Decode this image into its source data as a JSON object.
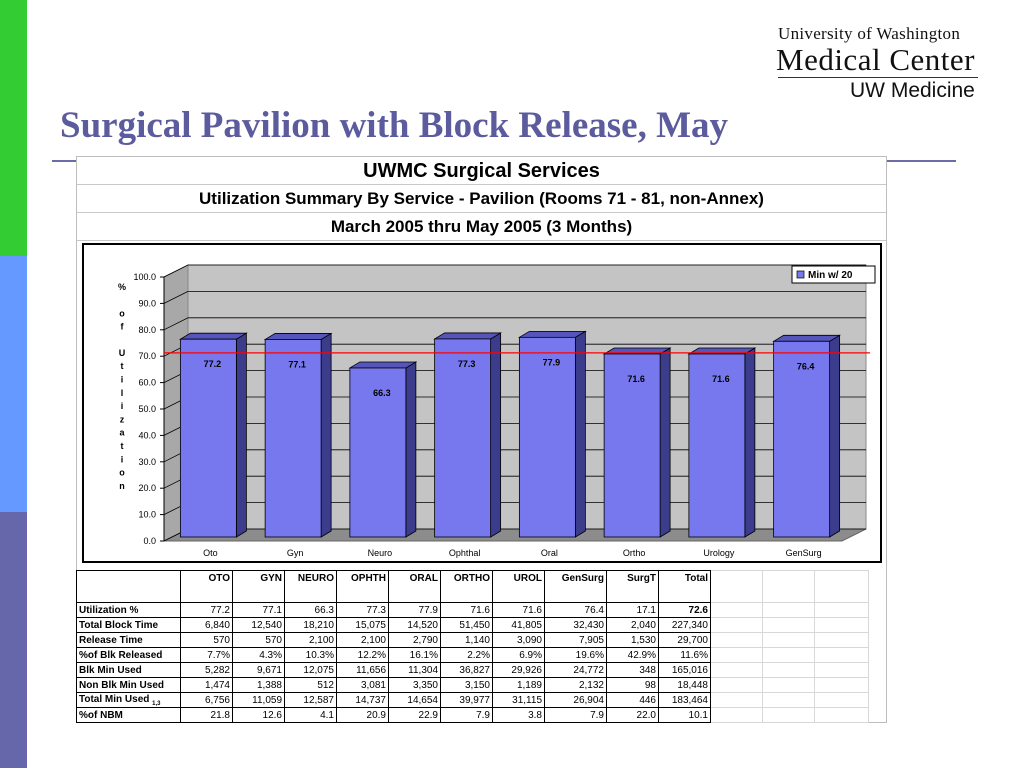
{
  "slide_title": "Surgical Pavilion with Block Release, May",
  "logo": {
    "line1": "University of Washington",
    "line2": "Medical Center",
    "line3": "UW Medicine"
  },
  "report": {
    "title": "UWMC Surgical Services",
    "subtitle": "Utilization Summary By Service - Pavilion (Rooms 71 - 81, non-Annex)",
    "period": "March 2005 thru May 2005 (3 Months)"
  },
  "chart_data": {
    "type": "bar",
    "categories": [
      "Oto",
      "Gyn",
      "Neuro",
      "Ophthal",
      "Oral",
      "Ortho",
      "Urology",
      "GenSurg"
    ],
    "values": [
      77.2,
      77.1,
      66.3,
      77.3,
      77.9,
      71.6,
      71.6,
      76.4
    ],
    "data_labels": [
      "77.2",
      "77.1",
      "66.3",
      "77.3",
      "77.9",
      "71.6",
      "71.6",
      "76.4"
    ],
    "ylabel": "% of Utilization",
    "ylim": [
      0,
      100
    ],
    "yticks": [
      "0.0",
      "10.0",
      "20.0",
      "30.0",
      "40.0",
      "50.0",
      "60.0",
      "70.0",
      "80.0",
      "90.0",
      "100.0"
    ],
    "reference_line": 69,
    "legend": "Min w/ 20",
    "legend_position": "top-right",
    "grid": true,
    "colors": {
      "bar_front": "#7777ee",
      "bar_side": "#3c3c8c",
      "bar_top": "#5555bb",
      "plot_bg": "#c4c4c4",
      "floor": "#8c8c8c",
      "reference": "#ff0000"
    }
  },
  "table": {
    "columns": [
      "",
      "OTO",
      "GYN",
      "NEURO",
      "OPHTH",
      "ORAL",
      "ORTHO",
      "UROL",
      "GenSurg",
      "SurgT",
      "Total"
    ],
    "rows": [
      {
        "label": "Utilization %",
        "values": [
          "77.2",
          "77.1",
          "66.3",
          "77.3",
          "77.9",
          "71.6",
          "71.6",
          "76.4",
          "17.1",
          "72.6"
        ]
      },
      {
        "label": "Total Block Time",
        "values": [
          "6,840",
          "12,540",
          "18,210",
          "15,075",
          "14,520",
          "51,450",
          "41,805",
          "32,430",
          "2,040",
          "227,340"
        ]
      },
      {
        "label": "Release Time",
        "values": [
          "570",
          "570",
          "2,100",
          "2,100",
          "2,790",
          "1,140",
          "3,090",
          "7,905",
          "1,530",
          "29,700"
        ]
      },
      {
        "label": "%of Blk Released",
        "values": [
          "7.7%",
          "4.3%",
          "10.3%",
          "12.2%",
          "16.1%",
          "2.2%",
          "6.9%",
          "19.6%",
          "42.9%",
          "11.6%"
        ]
      },
      {
        "label": "Blk Min Used",
        "values": [
          "5,282",
          "9,671",
          "12,075",
          "11,656",
          "11,304",
          "36,827",
          "29,926",
          "24,772",
          "348",
          "165,016"
        ]
      },
      {
        "label": "Non Blk Min Used",
        "values": [
          "1,474",
          "1,388",
          "512",
          "3,081",
          "3,350",
          "3,150",
          "1,189",
          "2,132",
          "98",
          "18,448"
        ]
      },
      {
        "label": "Total Min Used",
        "label_sub": "1,3",
        "values": [
          "6,756",
          "11,059",
          "12,587",
          "14,737",
          "14,654",
          "39,977",
          "31,115",
          "26,904",
          "446",
          "183,464"
        ]
      },
      {
        "label": "%of NBM",
        "values": [
          "21.8",
          "12.6",
          "4.1",
          "20.9",
          "22.9",
          "7.9",
          "3.8",
          "7.9",
          "22.0",
          "10.1"
        ]
      }
    ]
  }
}
